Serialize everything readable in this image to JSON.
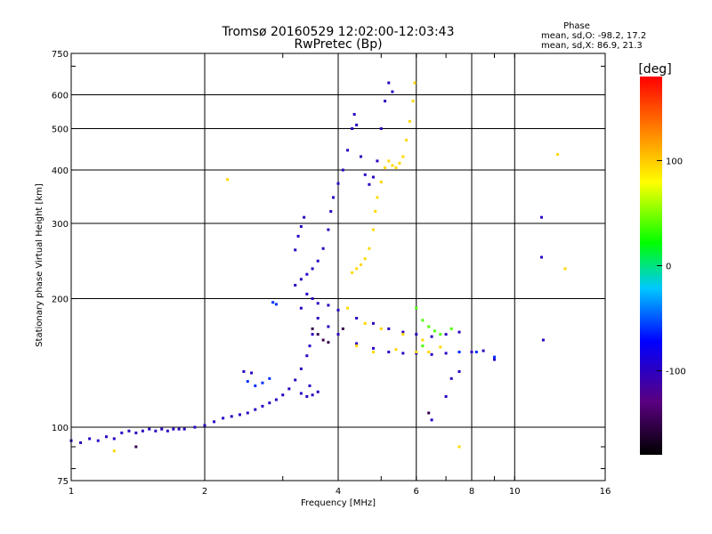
{
  "chart_data": {
    "type": "scatter",
    "title": "Tromsø 20160529 12:02:00-12:03:43",
    "subtitle": "RwPretec (Bp)",
    "xlabel": "Frequency [MHz]",
    "ylabel": "Stationary phase Virtual Height [km]",
    "x_scale": "log",
    "y_scale": "log",
    "xlim": [
      1,
      16
    ],
    "ylim": [
      75,
      750
    ],
    "grid": true,
    "x_ticks": [
      1,
      2,
      4,
      6,
      8,
      10,
      16
    ],
    "x_tick_labels": [
      "1",
      "2",
      "4",
      "6",
      "8",
      "10",
      "16"
    ],
    "y_ticks": [
      75,
      100,
      200,
      300,
      400,
      500,
      600,
      750
    ],
    "y_tick_labels": [
      "75",
      "100",
      "200",
      "300",
      "400",
      "500",
      "600",
      "750"
    ],
    "info": {
      "heading": "Phase",
      "line_o": "mean, sd,O: -98.2, 17.2",
      "line_x": "mean, sd,X:  86.9, 21.3"
    },
    "colorbar": {
      "label": "[deg]",
      "range": [
        -180,
        180
      ],
      "ticks": [
        100,
        0,
        -100
      ],
      "tick_labels": [
        "100",
        "0",
        "-100"
      ]
    },
    "series": [
      {
        "mode": "O",
        "phase_deg": -100,
        "points": [
          [
            1.0,
            93
          ],
          [
            1.05,
            92
          ],
          [
            1.1,
            94
          ],
          [
            1.15,
            93
          ],
          [
            1.2,
            95
          ],
          [
            1.25,
            94
          ],
          [
            1.3,
            97
          ],
          [
            1.35,
            98
          ],
          [
            1.4,
            97
          ],
          [
            1.45,
            98
          ],
          [
            1.5,
            99
          ],
          [
            1.55,
            98
          ],
          [
            1.6,
            99
          ],
          [
            1.65,
            98
          ],
          [
            1.7,
            99
          ],
          [
            1.75,
            99
          ],
          [
            1.8,
            99
          ],
          [
            1.9,
            100
          ],
          [
            2.0,
            101
          ],
          [
            2.1,
            103
          ],
          [
            2.2,
            105
          ],
          [
            2.3,
            106
          ],
          [
            2.4,
            107
          ],
          [
            2.5,
            108
          ],
          [
            2.6,
            110
          ],
          [
            2.7,
            112
          ],
          [
            2.8,
            114
          ],
          [
            2.9,
            116
          ],
          [
            3.0,
            119
          ],
          [
            3.1,
            123
          ],
          [
            3.2,
            129
          ],
          [
            3.3,
            137
          ],
          [
            3.4,
            147
          ],
          [
            3.45,
            155
          ],
          [
            3.5,
            165
          ],
          [
            2.45,
            135
          ],
          [
            2.55,
            134
          ],
          [
            3.2,
            215
          ],
          [
            3.3,
            222
          ],
          [
            3.4,
            228
          ],
          [
            3.5,
            235
          ],
          [
            3.6,
            245
          ],
          [
            3.7,
            262
          ],
          [
            3.8,
            290
          ],
          [
            3.85,
            320
          ],
          [
            3.9,
            345
          ],
          [
            4.0,
            372
          ],
          [
            4.1,
            400
          ],
          [
            4.2,
            445
          ],
          [
            4.3,
            500
          ],
          [
            4.35,
            540
          ],
          [
            4.4,
            510
          ],
          [
            4.5,
            430
          ],
          [
            4.6,
            390
          ],
          [
            4.7,
            370
          ],
          [
            4.8,
            385
          ],
          [
            4.9,
            420
          ],
          [
            5.0,
            500
          ],
          [
            5.1,
            580
          ],
          [
            5.2,
            640
          ],
          [
            5.3,
            610
          ],
          [
            3.4,
            205
          ],
          [
            3.5,
            200
          ],
          [
            3.6,
            195
          ],
          [
            3.8,
            193
          ],
          [
            4.0,
            188
          ],
          [
            4.4,
            180
          ],
          [
            4.8,
            175
          ],
          [
            5.2,
            170
          ],
          [
            5.6,
            167
          ],
          [
            6.0,
            165
          ],
          [
            6.5,
            163
          ],
          [
            7.0,
            165
          ],
          [
            7.5,
            167
          ],
          [
            3.3,
            190
          ],
          [
            3.6,
            180
          ],
          [
            3.8,
            172
          ],
          [
            4.0,
            165
          ],
          [
            4.4,
            157
          ],
          [
            4.8,
            153
          ],
          [
            5.2,
            150
          ],
          [
            5.6,
            149
          ],
          [
            6.0,
            149
          ],
          [
            6.5,
            148
          ],
          [
            7.0,
            149
          ],
          [
            7.5,
            150
          ],
          [
            8.0,
            150
          ],
          [
            8.5,
            151
          ],
          [
            9.0,
            144
          ],
          [
            3.3,
            120
          ],
          [
            3.4,
            118
          ],
          [
            3.5,
            119
          ],
          [
            3.6,
            121
          ],
          [
            3.45,
            125
          ],
          [
            3.2,
            260
          ],
          [
            3.25,
            280
          ],
          [
            3.3,
            295
          ],
          [
            3.35,
            310
          ],
          [
            6.5,
            104
          ],
          [
            7.0,
            118
          ],
          [
            7.2,
            130
          ],
          [
            7.5,
            135
          ],
          [
            11.5,
            310
          ],
          [
            11.5,
            250
          ],
          [
            11.6,
            160
          ]
        ]
      },
      {
        "mode": "X",
        "phase_deg": 95,
        "points": [
          [
            1.25,
            88
          ],
          [
            2.25,
            380
          ],
          [
            4.3,
            230
          ],
          [
            4.4,
            235
          ],
          [
            4.5,
            240
          ],
          [
            4.6,
            248
          ],
          [
            4.7,
            262
          ],
          [
            4.8,
            290
          ],
          [
            4.85,
            320
          ],
          [
            4.9,
            345
          ],
          [
            5.0,
            375
          ],
          [
            5.1,
            405
          ],
          [
            5.2,
            420
          ],
          [
            5.3,
            410
          ],
          [
            5.4,
            405
          ],
          [
            5.5,
            415
          ],
          [
            5.6,
            430
          ],
          [
            5.7,
            470
          ],
          [
            5.8,
            520
          ],
          [
            5.9,
            580
          ],
          [
            5.95,
            640
          ],
          [
            4.2,
            190
          ],
          [
            4.6,
            175
          ],
          [
            5.0,
            170
          ],
          [
            5.6,
            165
          ],
          [
            6.2,
            160
          ],
          [
            4.4,
            155
          ],
          [
            4.8,
            150
          ],
          [
            5.4,
            152
          ],
          [
            6.0,
            150
          ],
          [
            6.4,
            150
          ],
          [
            6.8,
            154
          ],
          [
            7.5,
            90
          ],
          [
            12.5,
            435
          ],
          [
            13.0,
            235
          ]
        ]
      },
      {
        "mode": "X",
        "phase_deg": 40,
        "points": [
          [
            6.0,
            190
          ],
          [
            6.2,
            178
          ],
          [
            6.4,
            172
          ],
          [
            6.6,
            168
          ],
          [
            6.8,
            165
          ],
          [
            7.2,
            170
          ],
          [
            6.2,
            155
          ]
        ]
      },
      {
        "mode": "O",
        "phase_deg": -60,
        "points": [
          [
            2.5,
            128
          ],
          [
            2.6,
            125
          ],
          [
            2.7,
            127
          ],
          [
            2.8,
            130
          ],
          [
            2.85,
            196
          ],
          [
            2.9,
            194
          ],
          [
            7.5,
            150
          ],
          [
            8.2,
            150
          ],
          [
            9.0,
            146
          ]
        ]
      },
      {
        "mode": "O",
        "phase_deg": -150,
        "points": [
          [
            3.5,
            170
          ],
          [
            3.6,
            165
          ],
          [
            3.7,
            160
          ],
          [
            3.8,
            158
          ],
          [
            4.1,
            170
          ],
          [
            6.4,
            108
          ],
          [
            1.4,
            90
          ]
        ]
      }
    ]
  }
}
